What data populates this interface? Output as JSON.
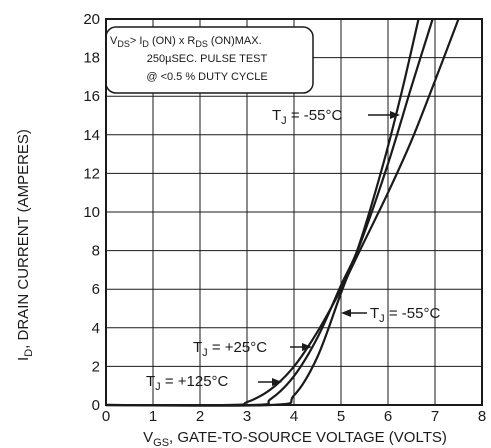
{
  "chart_data": {
    "type": "line",
    "xlim": [
      0,
      8
    ],
    "ylim": [
      0,
      20
    ],
    "x_ticks": [
      "0",
      "1",
      "2",
      "3",
      "4",
      "5",
      "6",
      "7",
      "8"
    ],
    "y_ticks": [
      "0",
      "2",
      "4",
      "6",
      "8",
      "10",
      "12",
      "14",
      "16",
      "18",
      "20"
    ],
    "grid": true,
    "ylabel": {
      "pre": "I",
      "sub": "D",
      "post": ", DRAIN CURRENT (AMPERES)"
    },
    "xlabel": {
      "pre": "V",
      "sub": "GS",
      "post": ", GATE-TO-SOURCE VOLTAGE (VOLTS)"
    },
    "test_conditions": {
      "line1": "V_DS > I_D (ON) x R_DS (ON)MAX.",
      "line2": "250µSEC. PULSE TEST",
      "line3": "@ <0.5 % DUTY CYCLE"
    },
    "series": [
      {
        "name": "T_J = -55°C",
        "x": [
          0,
          2.6,
          3.0,
          3.5,
          4.0,
          4.5,
          5.0,
          5.4,
          6.0,
          6.5,
          7.0,
          7.5
        ],
        "y": [
          0,
          0,
          0.15,
          0.8,
          2.0,
          3.8,
          6.0,
          8.0,
          11.0,
          13.7,
          16.8,
          20.0
        ]
      },
      {
        "name": "T_J = +25°C",
        "x": [
          0,
          3.1,
          3.5,
          4.0,
          4.5,
          5.0,
          5.4,
          6.0,
          6.5,
          6.95
        ],
        "y": [
          0,
          0,
          0.3,
          1.5,
          3.5,
          6.2,
          8.3,
          12.5,
          16.5,
          20.0
        ]
      },
      {
        "name": "T_J = +125°C",
        "x": [
          0,
          3.5,
          4.0,
          4.5,
          5.0,
          5.4,
          5.9,
          6.3,
          6.65
        ],
        "y": [
          0,
          0,
          0.5,
          2.5,
          5.8,
          8.4,
          12.5,
          16.3,
          20.0
        ]
      }
    ],
    "annotations": [
      {
        "text": "T_J = -55°C",
        "x": 6.0,
        "y": 14.0
      },
      {
        "text": "T_J = -55°C",
        "x": 5.7,
        "y": 4.5
      },
      {
        "text": "T_J = +25°C",
        "x": 2.0,
        "y": 2.8
      },
      {
        "text": "T_J = +125°C",
        "x": 0.8,
        "y": 1.0
      }
    ]
  }
}
